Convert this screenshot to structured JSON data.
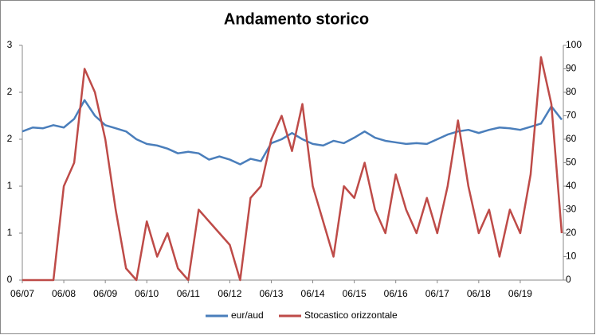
{
  "chart_data": {
    "type": "line",
    "title": "Andamento storico",
    "categories": [
      "06/07",
      null,
      null,
      null,
      "06/08",
      null,
      null,
      null,
      "06/09",
      null,
      null,
      null,
      "06/10",
      null,
      null,
      null,
      "06/11",
      null,
      null,
      null,
      "06/12",
      null,
      null,
      null,
      "06/13",
      null,
      null,
      null,
      "06/14",
      null,
      null,
      null,
      "06/15",
      null,
      null,
      null,
      "06/16",
      null,
      null,
      null,
      "06/17",
      null,
      null,
      null,
      "06/18",
      null,
      null,
      null,
      "06/19",
      null,
      null,
      null,
      null
    ],
    "series": [
      {
        "name": "eur/aud",
        "color": "#4a7ebb",
        "axis": "y",
        "values": [
          1.9,
          1.95,
          1.94,
          1.98,
          1.95,
          2.06,
          2.3,
          2.1,
          1.98,
          1.94,
          1.9,
          1.8,
          1.74,
          1.72,
          1.68,
          1.62,
          1.64,
          1.62,
          1.54,
          1.58,
          1.54,
          1.48,
          1.55,
          1.52,
          1.75,
          1.8,
          1.88,
          1.8,
          1.74,
          1.72,
          1.78,
          1.75,
          1.82,
          1.9,
          1.82,
          1.78,
          1.76,
          1.74,
          1.75,
          1.74,
          1.8,
          1.86,
          1.9,
          1.92,
          1.88,
          1.92,
          1.95,
          1.94,
          1.92,
          1.96,
          2.0,
          2.22,
          2.05
        ]
      },
      {
        "name": "Stocastico orizzontale",
        "color": "#be4b48",
        "axis": "y2",
        "values": [
          0,
          0,
          0,
          0,
          40,
          50,
          90,
          80,
          60,
          30,
          5,
          0,
          25,
          10,
          20,
          5,
          0,
          30,
          25,
          20,
          15,
          0,
          35,
          40,
          60,
          70,
          55,
          75,
          40,
          25,
          10,
          40,
          35,
          50,
          30,
          20,
          45,
          30,
          20,
          35,
          20,
          40,
          68,
          40,
          20,
          30,
          10,
          30,
          20,
          45,
          95,
          75,
          20
        ]
      }
    ],
    "ylim": [
      0,
      3
    ],
    "yticks": [
      0,
      {
        "value": 0.6,
        "label": "1"
      },
      {
        "value": 1.2,
        "label": "1"
      },
      {
        "value": 1.8,
        "label": "2"
      },
      {
        "value": 2.4,
        "label": "2"
      },
      3
    ],
    "y2lim": [
      0,
      100
    ],
    "y2ticks": [
      0,
      10,
      20,
      30,
      40,
      50,
      60,
      70,
      80,
      90,
      100
    ],
    "legend": "bottom"
  }
}
